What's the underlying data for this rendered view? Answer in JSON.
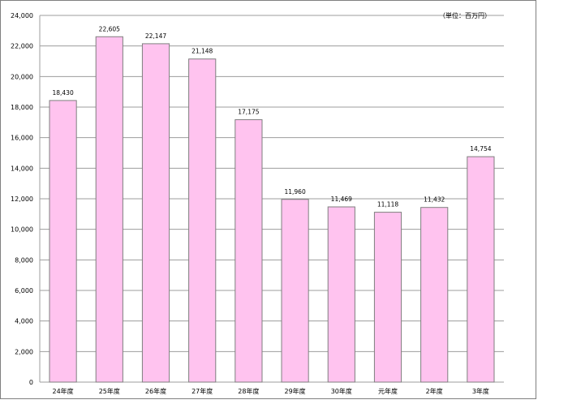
{
  "chart_data": {
    "type": "bar",
    "unit_label": "（単位：百万円）",
    "categories": [
      "24年度",
      "25年度",
      "26年度",
      "27年度",
      "28年度",
      "29年度",
      "30年度",
      "元年度",
      "2年度",
      "3年度"
    ],
    "values": [
      18430,
      22605,
      22147,
      21148,
      17175,
      11960,
      11469,
      11118,
      11432,
      14754
    ],
    "value_labels": [
      "18,430",
      "22,605",
      "22,147",
      "21,148",
      "17,175",
      "11,960",
      "11,469",
      "11,118",
      "11,432",
      "14,754"
    ],
    "y_ticks": [
      0,
      2000,
      4000,
      6000,
      8000,
      10000,
      12000,
      14000,
      16000,
      18000,
      20000,
      22000,
      24000
    ],
    "y_tick_labels": [
      "0",
      "2,000",
      "4,000",
      "6,000",
      "8,000",
      "10,000",
      "12,000",
      "14,000",
      "16,000",
      "18,000",
      "20,000",
      "22,000",
      "24,000"
    ],
    "ylim": [
      0,
      24000
    ],
    "grid": true,
    "legend": "none",
    "bar_color": "#ffc3ef",
    "bar_border_color": "#7f7f7f",
    "grid_color": "#9d9d9d"
  }
}
